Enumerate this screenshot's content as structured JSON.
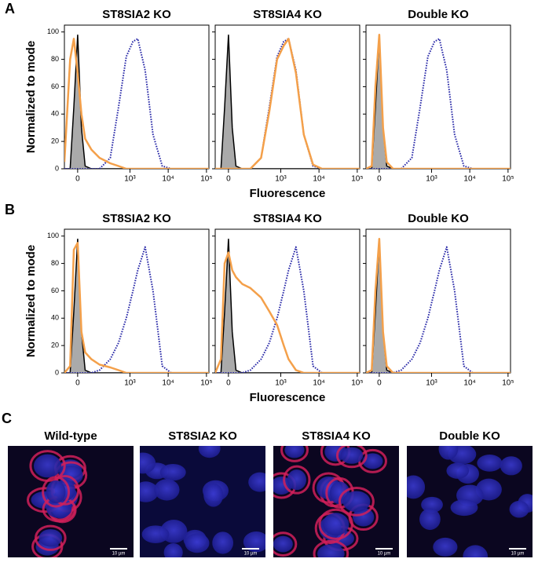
{
  "figure": {
    "panel_labels": [
      "A",
      "B",
      "C"
    ]
  },
  "chart_data": [
    {
      "type": "line",
      "title": "ST8SIA2 KO",
      "ylabel": "Normalized to mode",
      "xscale": {
        "type": "arcsinh",
        "cofactor": 86
      },
      "xlim": [
        -76,
        116000
      ],
      "ylim": [
        0,
        105
      ],
      "xticks": [
        {
          "value": 0,
          "label": "0"
        },
        {
          "value": 1000,
          "label": "10³"
        },
        {
          "value": 10000,
          "label": "10⁴"
        },
        {
          "value": 100000,
          "label": "10⁵"
        }
      ],
      "yticks": [
        0,
        20,
        40,
        60,
        80,
        100
      ],
      "x": [
        -76,
        -40,
        -20,
        0,
        20,
        40,
        80,
        150,
        300,
        500,
        800,
        1200,
        1600,
        2500,
        4000,
        7000,
        12000,
        30000,
        116000
      ],
      "series": [
        {
          "color": "#aaaaaa",
          "style": "filled",
          "values": [
            0,
            0,
            45,
            98,
            30,
            2,
            0,
            0,
            0,
            0,
            0,
            0,
            0,
            0,
            0,
            0,
            0,
            0,
            0
          ]
        },
        {
          "color": "#2a2aa8",
          "style": "dotted",
          "values": [
            0,
            0,
            0,
            0,
            0,
            0,
            0,
            0,
            8,
            45,
            82,
            93,
            95,
            72,
            25,
            2,
            0,
            0,
            0
          ]
        },
        {
          "color": "#f4a04a",
          "style": "solid",
          "values": [
            5,
            80,
            95,
            70,
            40,
            22,
            14,
            8,
            4,
            2,
            0,
            0,
            0,
            0,
            0,
            0,
            0,
            0,
            0
          ]
        }
      ]
    },
    {
      "type": "line",
      "title": "ST8SIA4 KO",
      "xlabel": "Fluorescence",
      "xscale": {
        "type": "arcsinh",
        "cofactor": 86
      },
      "xlim": [
        -76,
        116000
      ],
      "ylim": [
        0,
        105
      ],
      "xticks": [
        {
          "value": 0,
          "label": "0"
        },
        {
          "value": 1000,
          "label": "10³"
        },
        {
          "value": 10000,
          "label": "10⁴"
        },
        {
          "value": 100000,
          "label": "10⁵"
        }
      ],
      "yticks": [
        0,
        20,
        40,
        60,
        80,
        100
      ],
      "x": [
        -76,
        -40,
        -20,
        0,
        20,
        40,
        80,
        150,
        300,
        500,
        800,
        1200,
        1600,
        2500,
        4000,
        7000,
        12000,
        30000,
        116000
      ],
      "series": [
        {
          "color": "#aaaaaa",
          "style": "filled",
          "values": [
            0,
            0,
            45,
            98,
            30,
            2,
            0,
            0,
            0,
            0,
            0,
            0,
            0,
            0,
            0,
            0,
            0,
            0,
            0
          ]
        },
        {
          "color": "#2a2aa8",
          "style": "dotted",
          "values": [
            0,
            0,
            0,
            0,
            0,
            0,
            0,
            0,
            8,
            45,
            82,
            93,
            95,
            72,
            25,
            2,
            0,
            0,
            0
          ]
        },
        {
          "color": "#f4a04a",
          "style": "solid",
          "values": [
            0,
            0,
            0,
            0,
            0,
            0,
            0,
            0,
            8,
            42,
            80,
            90,
            95,
            70,
            25,
            3,
            0,
            0,
            0
          ]
        }
      ]
    },
    {
      "type": "line",
      "title": "Double KO",
      "xscale": {
        "type": "arcsinh",
        "cofactor": 86
      },
      "xlim": [
        -76,
        116000
      ],
      "ylim": [
        0,
        105
      ],
      "xticks": [
        {
          "value": 0,
          "label": "0"
        },
        {
          "value": 1000,
          "label": "10³"
        },
        {
          "value": 10000,
          "label": "10⁴"
        },
        {
          "value": 100000,
          "label": "10⁵"
        }
      ],
      "yticks": [
        0,
        20,
        40,
        60,
        80,
        100
      ],
      "x": [
        -76,
        -40,
        -20,
        0,
        20,
        40,
        80,
        150,
        300,
        500,
        800,
        1200,
        1600,
        2500,
        4000,
        7000,
        12000,
        30000,
        116000
      ],
      "series": [
        {
          "color": "#aaaaaa",
          "style": "filled",
          "values": [
            0,
            0,
            45,
            98,
            30,
            2,
            0,
            0,
            0,
            0,
            0,
            0,
            0,
            0,
            0,
            0,
            0,
            0,
            0
          ]
        },
        {
          "color": "#2a2aa8",
          "style": "dotted",
          "values": [
            0,
            0,
            0,
            0,
            0,
            0,
            0,
            0,
            8,
            45,
            82,
            93,
            95,
            72,
            25,
            2,
            0,
            0,
            0
          ]
        },
        {
          "color": "#f4a04a",
          "style": "solid",
          "values": [
            0,
            2,
            60,
            98,
            30,
            5,
            0,
            0,
            0,
            0,
            0,
            0,
            0,
            0,
            0,
            0,
            0,
            0,
            0
          ]
        }
      ]
    },
    {
      "type": "line",
      "title": "ST8SIA2 KO",
      "ylabel": "Normalized to mode",
      "xscale": {
        "type": "arcsinh",
        "cofactor": 86
      },
      "xlim": [
        -76,
        116000
      ],
      "ylim": [
        0,
        105
      ],
      "xticks": [
        {
          "value": 0,
          "label": "0"
        },
        {
          "value": 1000,
          "label": "10³"
        },
        {
          "value": 10000,
          "label": "10⁴"
        },
        {
          "value": 100000,
          "label": "10⁵"
        }
      ],
      "yticks": [
        0,
        20,
        40,
        60,
        80,
        100
      ],
      "x": [
        -76,
        -40,
        -20,
        0,
        20,
        40,
        80,
        150,
        300,
        500,
        800,
        1200,
        1600,
        2500,
        4000,
        7000,
        12000,
        30000,
        116000
      ],
      "series": [
        {
          "color": "#aaaaaa",
          "style": "filled",
          "values": [
            0,
            0,
            45,
            98,
            30,
            2,
            0,
            0,
            0,
            0,
            0,
            0,
            0,
            0,
            0,
            0,
            0,
            0,
            0
          ]
        },
        {
          "color": "#2a2aa8",
          "style": "dotted",
          "values": [
            0,
            0,
            0,
            0,
            0,
            0,
            0,
            2,
            10,
            22,
            40,
            60,
            75,
            92,
            60,
            5,
            0,
            0,
            0
          ]
        },
        {
          "color": "#f4a04a",
          "style": "solid",
          "values": [
            0,
            5,
            90,
            95,
            30,
            15,
            10,
            6,
            4,
            2,
            0,
            0,
            0,
            0,
            0,
            0,
            0,
            0,
            0
          ]
        }
      ]
    },
    {
      "type": "line",
      "title": "ST8SIA4 KO",
      "xlabel": "Fluorescence",
      "xscale": {
        "type": "arcsinh",
        "cofactor": 86
      },
      "xlim": [
        -76,
        116000
      ],
      "ylim": [
        0,
        105
      ],
      "xticks": [
        {
          "value": 0,
          "label": "0"
        },
        {
          "value": 1000,
          "label": "10³"
        },
        {
          "value": 10000,
          "label": "10⁴"
        },
        {
          "value": 100000,
          "label": "10⁵"
        }
      ],
      "yticks": [
        0,
        20,
        40,
        60,
        80,
        100
      ],
      "x": [
        -76,
        -40,
        -20,
        0,
        20,
        40,
        80,
        150,
        300,
        500,
        800,
        1200,
        1600,
        2500,
        4000,
        7000,
        12000,
        30000,
        116000
      ],
      "series": [
        {
          "color": "#aaaaaa",
          "style": "filled",
          "values": [
            0,
            0,
            45,
            98,
            30,
            2,
            0,
            0,
            0,
            0,
            0,
            0,
            0,
            0,
            0,
            0,
            0,
            0,
            0
          ]
        },
        {
          "color": "#2a2aa8",
          "style": "dotted",
          "values": [
            0,
            0,
            0,
            0,
            0,
            0,
            0,
            2,
            10,
            22,
            40,
            60,
            75,
            92,
            60,
            5,
            0,
            0,
            0
          ]
        },
        {
          "color": "#f4a04a",
          "style": "solid",
          "values": [
            0,
            10,
            80,
            88,
            75,
            70,
            65,
            62,
            55,
            45,
            35,
            20,
            10,
            2,
            0,
            0,
            0,
            0,
            0
          ]
        }
      ]
    },
    {
      "type": "line",
      "title": "Double KO",
      "xscale": {
        "type": "arcsinh",
        "cofactor": 86
      },
      "xlim": [
        -76,
        116000
      ],
      "ylim": [
        0,
        105
      ],
      "xticks": [
        {
          "value": 0,
          "label": "0"
        },
        {
          "value": 1000,
          "label": "10³"
        },
        {
          "value": 10000,
          "label": "10⁴"
        },
        {
          "value": 100000,
          "label": "10⁵"
        }
      ],
      "yticks": [
        0,
        20,
        40,
        60,
        80,
        100
      ],
      "x": [
        -76,
        -40,
        -20,
        0,
        20,
        40,
        80,
        150,
        300,
        500,
        800,
        1200,
        1600,
        2500,
        4000,
        7000,
        12000,
        30000,
        116000
      ],
      "series": [
        {
          "color": "#aaaaaa",
          "style": "filled",
          "values": [
            0,
            0,
            45,
            98,
            30,
            2,
            0,
            0,
            0,
            0,
            0,
            0,
            0,
            0,
            0,
            0,
            0,
            0,
            0
          ]
        },
        {
          "color": "#2a2aa8",
          "style": "dotted",
          "values": [
            0,
            0,
            0,
            0,
            0,
            0,
            0,
            2,
            10,
            22,
            40,
            60,
            75,
            92,
            60,
            5,
            0,
            0,
            0
          ]
        },
        {
          "color": "#f4a04a",
          "style": "solid",
          "values": [
            0,
            2,
            60,
            98,
            30,
            5,
            0,
            0,
            0,
            0,
            0,
            0,
            0,
            0,
            0,
            0,
            0,
            0,
            0
          ]
        }
      ]
    }
  ],
  "images": [
    {
      "title": "Wild-type",
      "scale_bar": "10 µm"
    },
    {
      "title": "ST8SIA2 KO",
      "scale_bar": "10 µm"
    },
    {
      "title": "ST8SIA4 KO",
      "scale_bar": "10 µm"
    },
    {
      "title": "Double KO",
      "scale_bar": "10 µm"
    }
  ]
}
